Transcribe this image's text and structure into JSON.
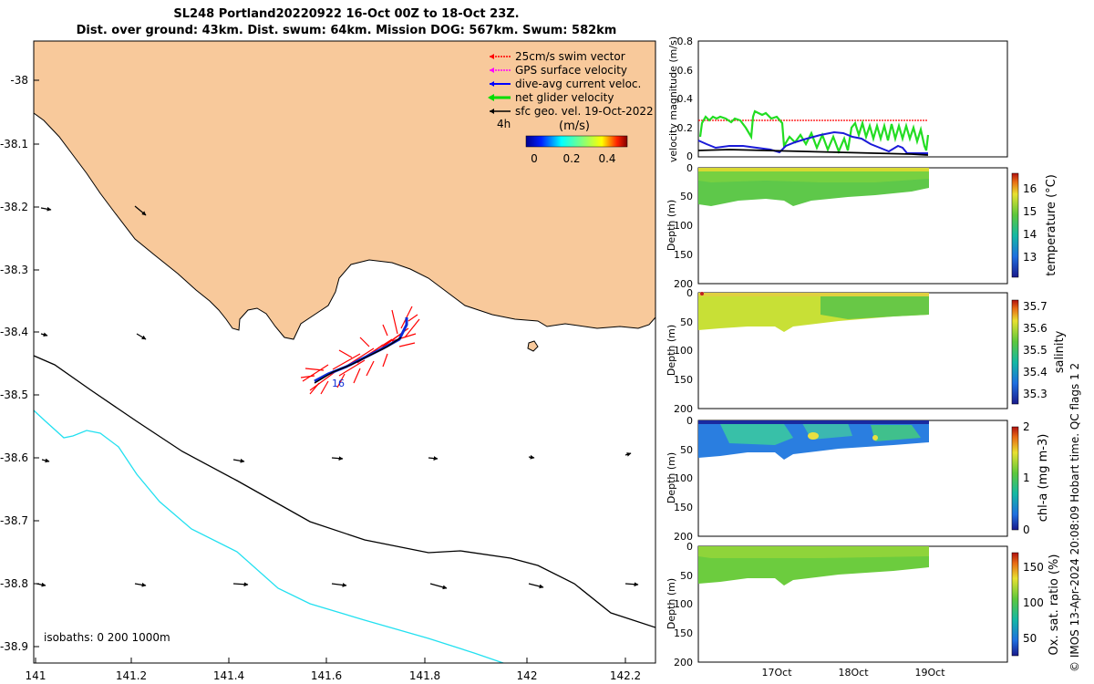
{
  "title": {
    "line1": "SL248 Portland20220922 16-Oct 00Z to 18-Oct 23Z.",
    "line2": "Dist. over ground: 43km. Dist. swum: 64km. Mission DOG: 567km. Swum: 582km"
  },
  "map": {
    "x_ticks": [
      "141",
      "141.2",
      "141.4",
      "141.6",
      "141.8",
      "142",
      "142.2"
    ],
    "y_ticks": [
      "-38",
      "-38.1",
      "-38.2",
      "-38.3",
      "-38.4",
      "-38.5",
      "-38.6",
      "-38.7",
      "-38.8",
      "-38.9"
    ],
    "colors": {
      "land": "#f8c99b",
      "sea": "#ffffff",
      "track": "#0a2bd8",
      "swim_vectors": "#ff0000",
      "isobath_200": "#000000",
      "isobath_1000": "#22e0f0"
    },
    "legend": {
      "items": [
        {
          "label": "25cm/s swim vector",
          "color": "#ff0000"
        },
        {
          "label": "GPS surface velocity",
          "color": "#ff00ff"
        },
        {
          "label": "dive-avg current veloc.",
          "color": "#0000ff"
        },
        {
          "label": "net glider velocity",
          "color": "#00dd00"
        },
        {
          "label": "sfc geo. vel. 19-Oct-2022",
          "color": "#000000"
        }
      ],
      "time_label": "4h",
      "colorbar_title": "(m/s)",
      "colorbar_ticks": [
        "0",
        "0.2",
        "0.4"
      ]
    },
    "track_label": "16",
    "isobath_note": "isobaths: 0   200  1000m"
  },
  "panels": {
    "velocity": {
      "ylabel": "velocity magnitude (m/s)",
      "y_ticks": [
        "0.8",
        "0.6",
        "0.4",
        "0.2",
        "0"
      ]
    },
    "temperature": {
      "ylabel": "Depth (m)",
      "y_ticks": [
        "0",
        "50",
        "100",
        "150",
        "200"
      ],
      "cb_label": "temperature (°C)",
      "cb_ticks": [
        "16",
        "15",
        "14",
        "13"
      ]
    },
    "salinity": {
      "ylabel": "Depth (m)",
      "y_ticks": [
        "0",
        "50",
        "100",
        "150",
        "200"
      ],
      "cb_label": "salinity",
      "cb_ticks": [
        "35.7",
        "35.6",
        "35.5",
        "35.4",
        "35.3"
      ]
    },
    "chla": {
      "ylabel": "Depth (m)",
      "y_ticks": [
        "0",
        "50",
        "100",
        "150",
        "200"
      ],
      "cb_label": "chl-a (mg m-3)",
      "cb_ticks": [
        "2",
        "1",
        "0"
      ]
    },
    "oxygen": {
      "ylabel": "Depth (m)",
      "y_ticks": [
        "0",
        "50",
        "100",
        "150",
        "200"
      ],
      "cb_label": "Ox. sat. ratio (%)",
      "cb_ticks": [
        "150",
        "100",
        "50"
      ]
    },
    "x_ticks": [
      "17Oct",
      "18Oct",
      "19Oct"
    ]
  },
  "credit": "© IMOS 13-Apr-2024 20:08:09 Hobart time. QC flags 1  2"
}
